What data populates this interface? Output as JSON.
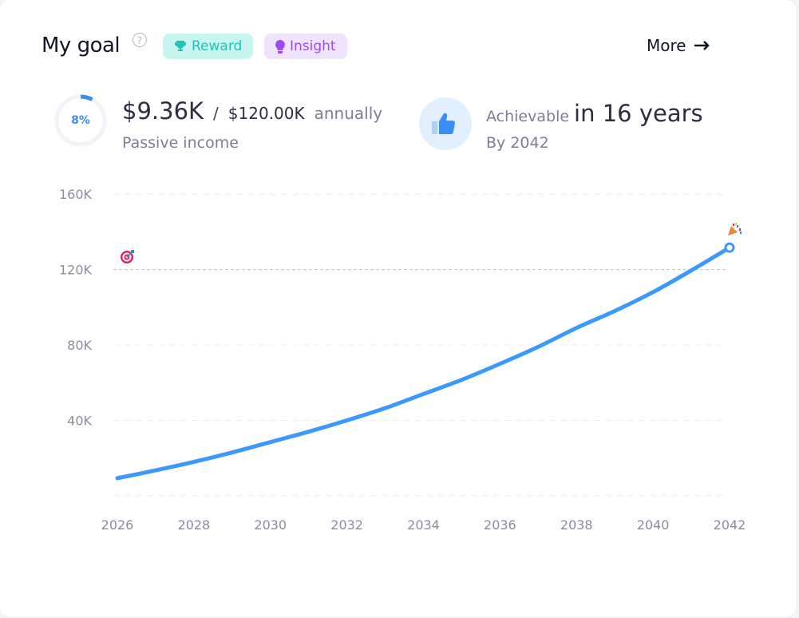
{
  "header": {
    "title": "My goal",
    "help_icon": "?",
    "badges": [
      {
        "label": "Reward",
        "icon": "trophy-icon"
      },
      {
        "label": "Insight",
        "icon": "lightbulb-icon"
      }
    ],
    "more_label": "More"
  },
  "summary": {
    "progress_percent": 8,
    "progress_label": "8%",
    "current": "$9.36K",
    "separator": "/",
    "goal": "$120.00K",
    "period": "annually",
    "caption": "Passive income"
  },
  "achievable": {
    "prefix": "Achievable",
    "duration": "in 16 years",
    "by": "By 2042"
  },
  "colors": {
    "line": "#3b99fc",
    "accent": "#3b8ef5",
    "reward": "#22c3b3",
    "insight": "#9a4cf2"
  },
  "chart_data": {
    "type": "line",
    "x": [
      2026,
      2027,
      2028,
      2029,
      2030,
      2031,
      2032,
      2033,
      2034,
      2035,
      2036,
      2037,
      2038,
      2039,
      2040,
      2041,
      2042
    ],
    "series": [
      {
        "name": "Passive income",
        "values": [
          9.36,
          13.5,
          18,
          23,
          28.5,
          34,
          40,
          46.5,
          54,
          61.5,
          70,
          79,
          89,
          98,
          108,
          119.5,
          131.6
        ]
      }
    ],
    "target": 120,
    "xticks": [
      "2026",
      "2028",
      "2030",
      "2032",
      "2034",
      "2036",
      "2038",
      "2040",
      "2042"
    ],
    "yticks": [
      {
        "v": 40,
        "label": "40K"
      },
      {
        "v": 80,
        "label": "80K"
      },
      {
        "v": 120,
        "label": "120K"
      },
      {
        "v": 160,
        "label": "160K"
      }
    ],
    "xlim": [
      2026,
      2042
    ],
    "ylim": [
      0,
      160
    ],
    "annotations": [
      "target-icon",
      "party-popper-icon"
    ]
  }
}
